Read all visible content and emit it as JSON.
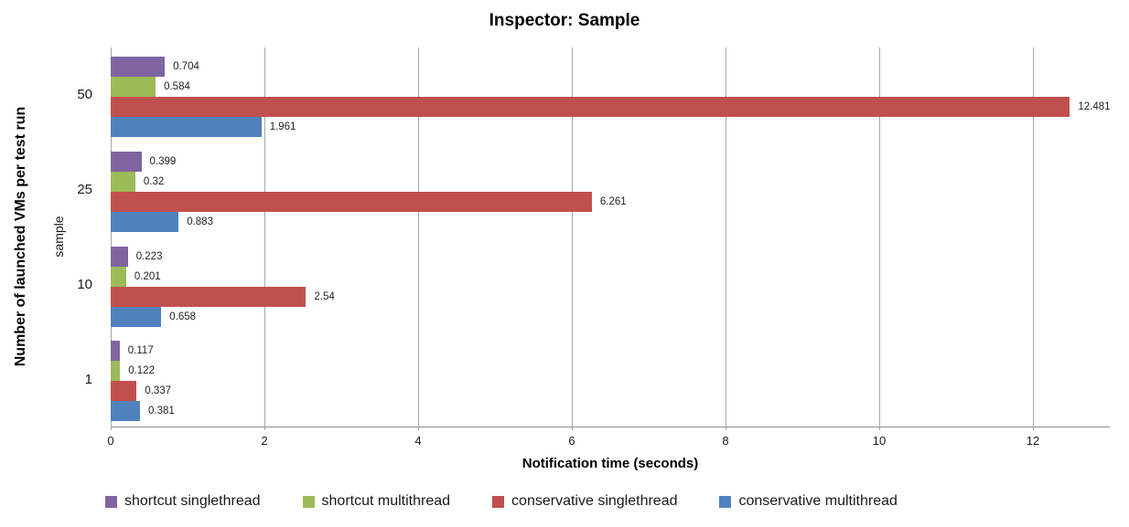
{
  "chart_data": {
    "type": "bar",
    "orientation": "horizontal",
    "title": "Inspector: Sample",
    "xlabel": "Notification time (seconds)",
    "ylabel": "Number of launched VMs per test run",
    "ylabel2": "sample",
    "categories": [
      "50",
      "25",
      "10",
      "1"
    ],
    "series": [
      {
        "name": "shortcut singlethread",
        "color": "#8064A2",
        "values": [
          0.704,
          0.399,
          0.223,
          0.117
        ],
        "labels": [
          "0.704",
          "0.399",
          "0.223",
          "0.117"
        ]
      },
      {
        "name": "shortcut multithread",
        "color": "#9BBB59",
        "values": [
          0.584,
          0.32,
          0.201,
          0.122
        ],
        "labels": [
          "0.584",
          "0.32",
          "0.201",
          "0.122"
        ]
      },
      {
        "name": "conservative singlethread",
        "color": "#C0504D",
        "values": [
          12.481,
          6.261,
          2.54,
          0.337
        ],
        "labels": [
          "12.481",
          "6.261",
          "2.54",
          "0.337"
        ]
      },
      {
        "name": "conservative multithread",
        "color": "#4F81BD",
        "values": [
          1.961,
          0.883,
          0.658,
          0.381
        ],
        "labels": [
          "1.961",
          "0.883",
          "0.658",
          "0.381"
        ]
      }
    ],
    "x_ticks": [
      "0",
      "2",
      "4",
      "6",
      "8",
      "10",
      "12"
    ],
    "xlim": [
      0,
      13
    ],
    "grid": "vertical-gridlines",
    "legend_position": "bottom",
    "colors": {
      "gridline": "#a6a6a6",
      "axis_line": "#8c8c8c",
      "text": "#1a1a1a"
    }
  }
}
